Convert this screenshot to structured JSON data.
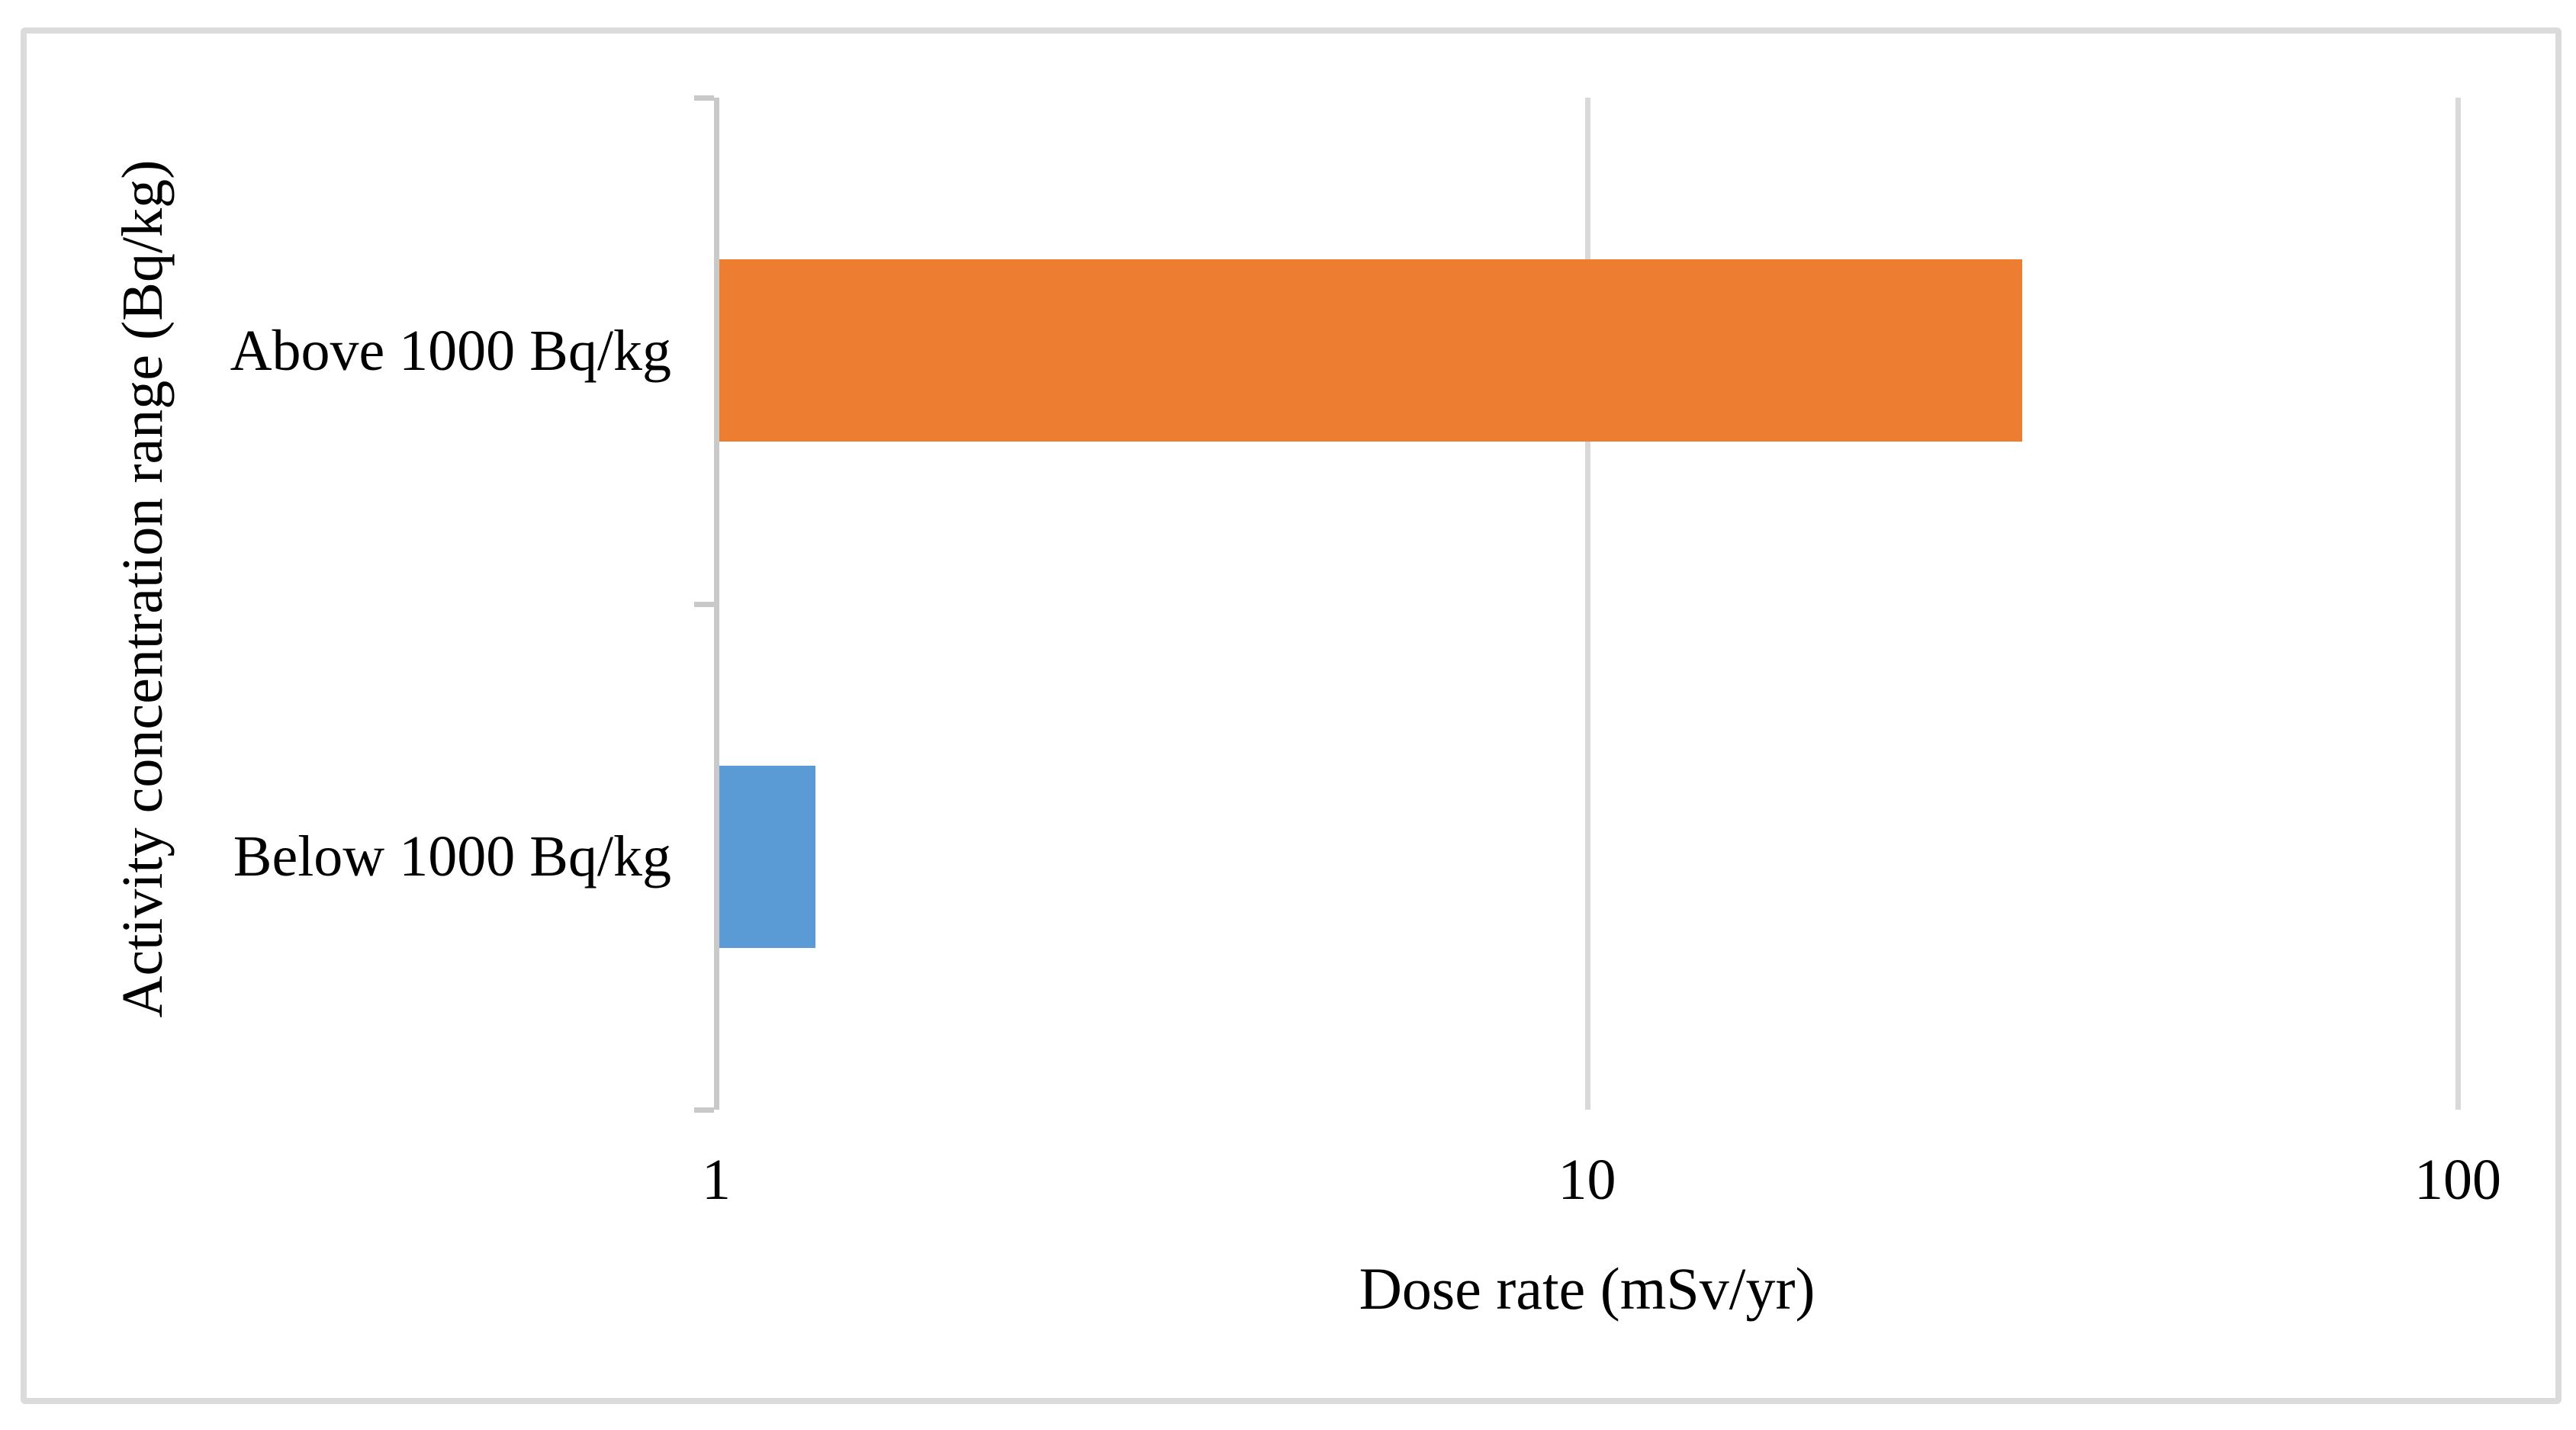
{
  "chart_data": {
    "type": "bar",
    "orientation": "horizontal",
    "title": "",
    "xlabel": "Dose rate (mSv/yr)",
    "ylabel": "Activity concentration range (Bq/kg)",
    "x_scale": "log10",
    "xlim": [
      1,
      100
    ],
    "x_ticks": [
      {
        "value": 1,
        "label": "1"
      },
      {
        "value": 10,
        "label": "10"
      },
      {
        "value": 100,
        "label": "100"
      }
    ],
    "categories": [
      "Above 1000 Bq/kg",
      "Below 1000 Bq/kg"
    ],
    "series": [
      {
        "name": "Dose rate (mSv/yr)",
        "values": [
          31.6,
          1.3
        ]
      }
    ],
    "bar_colors": [
      "#ED7D31",
      "#5B9BD5"
    ],
    "grid": true,
    "legend_position": "none"
  },
  "style_colors": {
    "gridline": "#D9D9D9",
    "axis_line": "#C9C9C9",
    "frame_border": "#DBDBDB",
    "background": "#FFFFFF",
    "text": "#000000"
  }
}
